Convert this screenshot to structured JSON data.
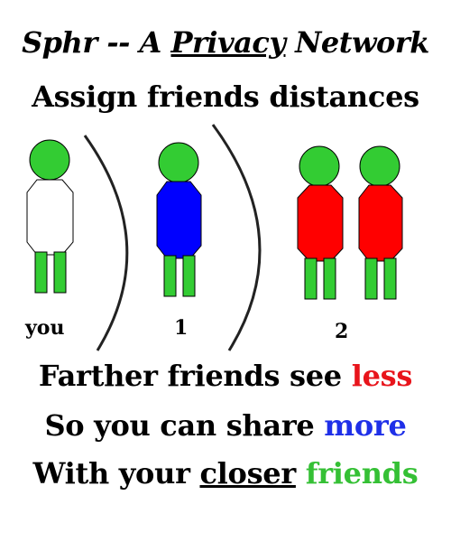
{
  "header": {
    "title_prefix": "Sphr -- A ",
    "title_underlined": "Privacy",
    "title_suffix": " Network",
    "subtitle": "Assign friends distances"
  },
  "figure": {
    "labels": {
      "you": "you",
      "distance_1": "1",
      "distance_2": "2"
    },
    "colors": {
      "head": "#33cc33",
      "legs": "#33cc33",
      "you_body": "#ffffff",
      "distance_1_body": "#0000ff",
      "distance_2_body": "#ff0000",
      "arc": "#222222"
    }
  },
  "message": {
    "line1_prefix": "Farther friends see ",
    "line1_highlight": "less",
    "line1_color": "#e8141b",
    "line2_prefix": "So you can share ",
    "line2_highlight": "more",
    "line2_color": "#1f30e8",
    "line3_prefix": "With your ",
    "line3_underlined": "closer",
    "line3_space": " ",
    "line3_highlight": "friends",
    "line3_color": "#35c035"
  }
}
